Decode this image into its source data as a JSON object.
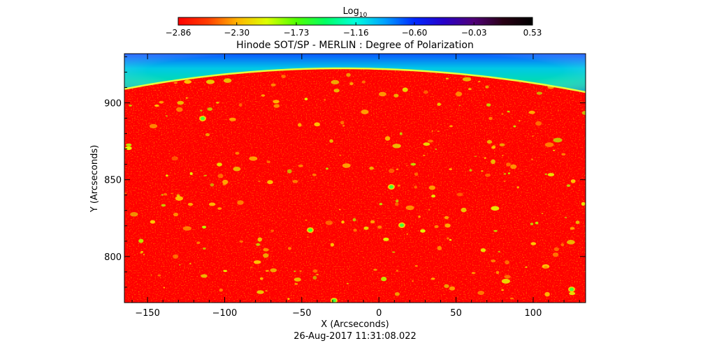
{
  "chart_data": {
    "type": "heatmap",
    "title": "Hinode SOT/SP - MERLIN : Degree of Polarization",
    "subtitle": "26-Aug-2017 11:31:08.022",
    "xlabel": "X (Arcseconds)",
    "ylabel": "Y (Arcseconds)",
    "xlim": [
      -165,
      134
    ],
    "ylim": [
      770,
      932
    ],
    "x_ticks": [
      -150,
      -100,
      -50,
      0,
      50,
      100
    ],
    "y_ticks": [
      800,
      850,
      900
    ],
    "colorbar": {
      "label_base": "Log",
      "label_sub": "10",
      "min": -2.86,
      "max": 0.53,
      "ticks": [
        -2.86,
        -2.3,
        -1.73,
        -1.16,
        -0.6,
        -0.03,
        0.53
      ],
      "tick_labels": [
        "−2.86",
        "−2.30",
        "−1.73",
        "−1.16",
        "−0.60",
        "−0.03",
        "0.53"
      ],
      "colors": [
        "#ff0000",
        "#ff3c00",
        "#ffb400",
        "#dcff00",
        "#50ff00",
        "#00ff64",
        "#00ffdc",
        "#00a0ff",
        "#0028ff",
        "#2800c8",
        "#500078",
        "#280014",
        "#000000"
      ]
    },
    "grid": false,
    "legend": "none",
    "background_level": -2.86
  }
}
